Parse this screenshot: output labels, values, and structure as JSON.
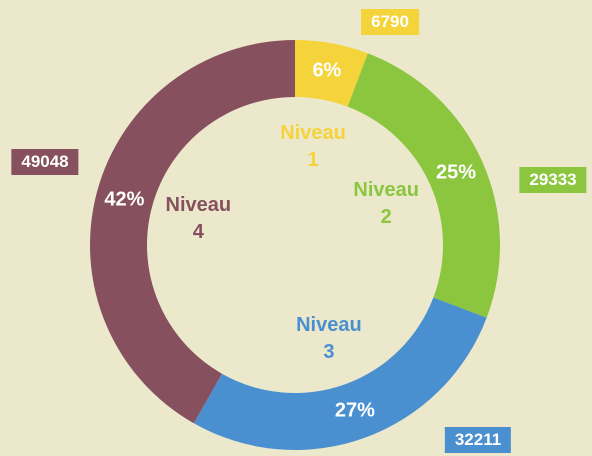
{
  "chart_data": {
    "type": "donut",
    "categories": [
      "Niveau 1",
      "Niveau 2",
      "Niveau 3",
      "Niveau 4"
    ],
    "values": [
      6790,
      29333,
      32211,
      49048
    ],
    "percent_labels": [
      "6%",
      "25%",
      "27%",
      "42%"
    ],
    "colors": [
      "#f5d33a",
      "#8cc63f",
      "#4a90d0",
      "#86505e"
    ]
  }
}
